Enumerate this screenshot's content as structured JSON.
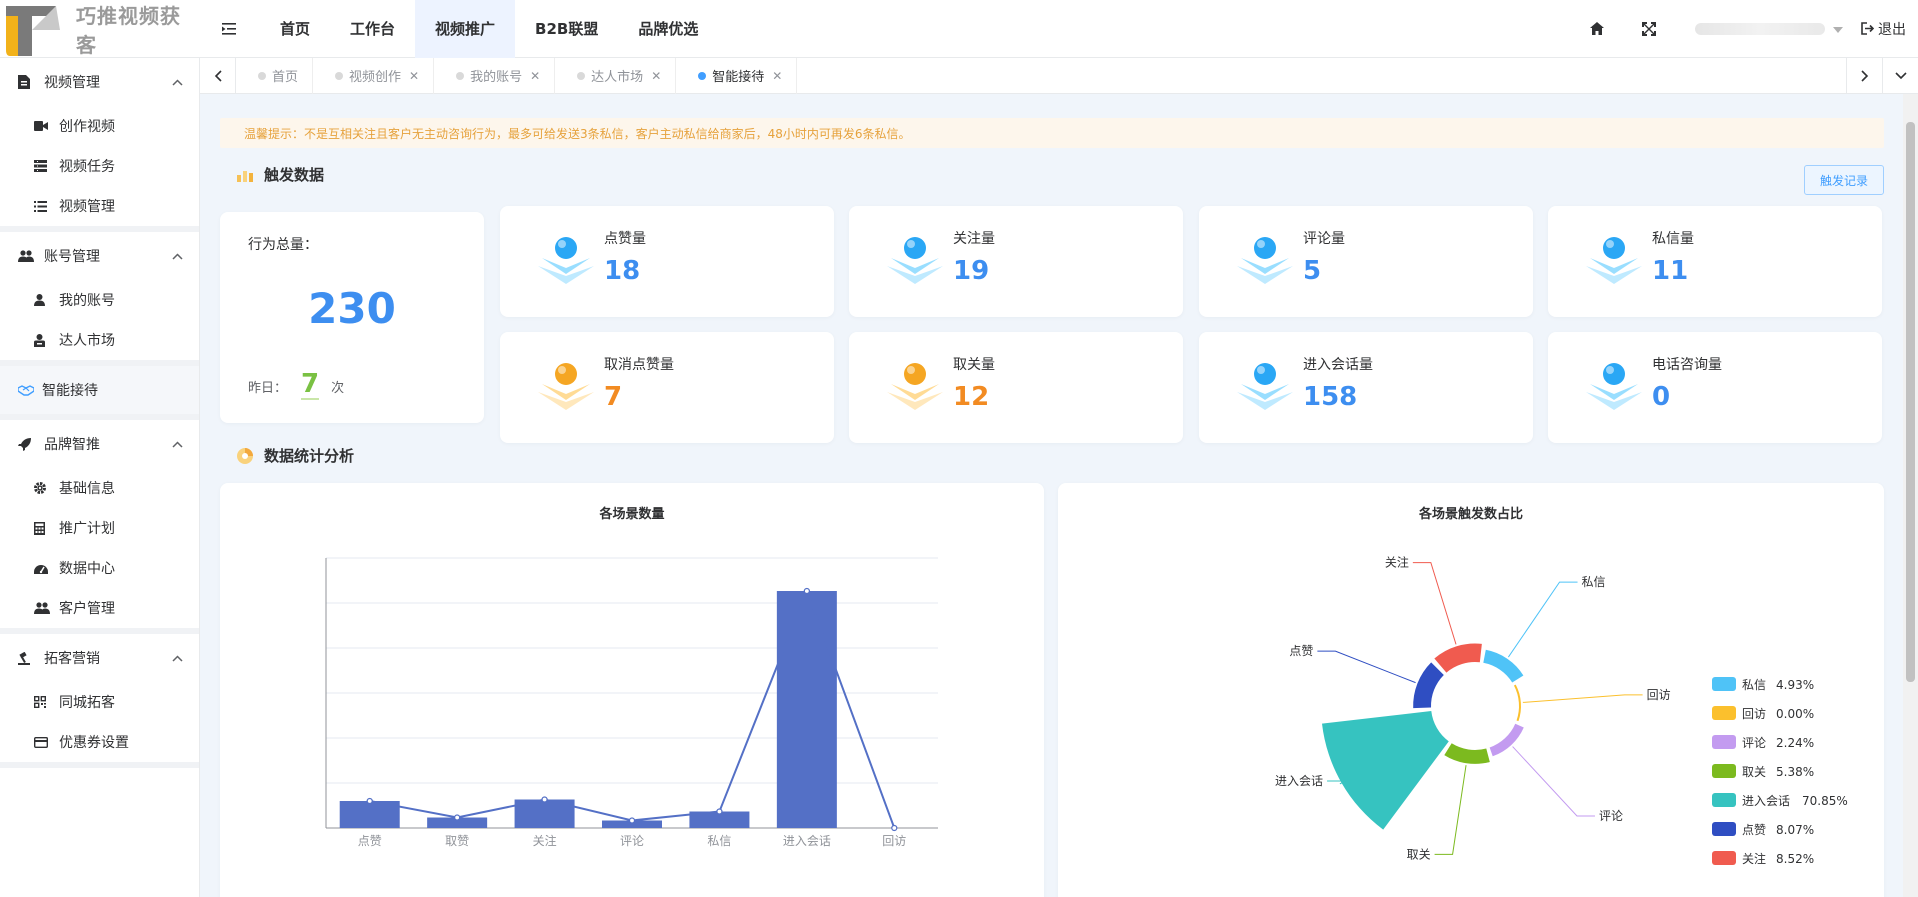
{
  "app": {
    "name": "巧推视频获客"
  },
  "topnav": [
    "首页",
    "工作台",
    "视频推广",
    "B2B联盟",
    "品牌优选"
  ],
  "header": {
    "logout": "退出"
  },
  "sidebar": {
    "groups": [
      {
        "label": "视频管理",
        "icon": "document-icon",
        "items": [
          {
            "label": "创作视频",
            "icon": "video-icon"
          },
          {
            "label": "视频任务",
            "icon": "task-list-icon"
          },
          {
            "label": "视频管理",
            "icon": "list-icon"
          }
        ]
      },
      {
        "label": "账号管理",
        "icon": "users-icon",
        "items": [
          {
            "label": "我的账号",
            "icon": "user-icon"
          },
          {
            "label": "达人市场",
            "icon": "badge-icon"
          }
        ]
      },
      {
        "label": "品牌智推",
        "icon": "rocket-icon",
        "items": [
          {
            "label": "基础信息",
            "icon": "gear-icon"
          },
          {
            "label": "推广计划",
            "icon": "calculator-icon"
          },
          {
            "label": "数据中心",
            "icon": "dashboard-icon"
          },
          {
            "label": "客户管理",
            "icon": "users-icon"
          }
        ]
      },
      {
        "label": "拓客营销",
        "icon": "gavel-icon",
        "items": [
          {
            "label": "同城拓客",
            "icon": "qrcode-icon"
          },
          {
            "label": "优惠券设置",
            "icon": "card-icon"
          }
        ]
      }
    ],
    "single": {
      "label": "智能接待",
      "icon": "handshake-icon"
    }
  },
  "tabs": [
    {
      "label": "首页",
      "closable": false,
      "active": false
    },
    {
      "label": "视频创作",
      "closable": true,
      "active": false
    },
    {
      "label": "我的账号",
      "closable": true,
      "active": false
    },
    {
      "label": "达人市场",
      "closable": true,
      "active": false
    },
    {
      "label": "智能接待",
      "closable": true,
      "active": true
    }
  ],
  "notice": "温馨提示：不是互相关注且客户无主动咨询行为，最多可给发送3条私信，客户主动私信给商家后，48小时内可再发6条私信。",
  "trigger": {
    "title": "触发数据",
    "record_button": "触发记录",
    "total_label": "行为总量：",
    "total_value": "230",
    "yesterday_label": "昨日：",
    "yesterday_value": "7",
    "yesterday_unit": "次",
    "stats": [
      {
        "label": "点赞量",
        "value": "18",
        "color": "blue",
        "icon": "thumbs-up-icon"
      },
      {
        "label": "关注量",
        "value": "19",
        "color": "blue",
        "icon": "heart-icon"
      },
      {
        "label": "评论量",
        "value": "5",
        "color": "blue",
        "icon": "comment-icon"
      },
      {
        "label": "私信量",
        "value": "11",
        "color": "blue",
        "icon": "message-icon"
      },
      {
        "label": "取消点赞量",
        "value": "7",
        "color": "orange",
        "icon": "thumbs-up-icon"
      },
      {
        "label": "取关量",
        "value": "12",
        "color": "orange",
        "icon": "heart-icon"
      },
      {
        "label": "进入会话量",
        "value": "158",
        "color": "blue",
        "icon": "chat-bubble-icon"
      },
      {
        "label": "电话咨询量",
        "value": "0",
        "color": "blue",
        "icon": "phone-icon"
      }
    ]
  },
  "analysis": {
    "title": "数据统计分析"
  },
  "chart_data": [
    {
      "type": "bar",
      "title": "各场景数量",
      "categories": [
        "点赞",
        "取赞",
        "关注",
        "评论",
        "私信",
        "进入会话",
        "回访"
      ],
      "values": [
        18,
        7,
        19,
        5,
        11,
        158,
        0
      ],
      "ylim": [
        0,
        180
      ],
      "line_overlay": true,
      "color": "#5470c6",
      "grid": true
    },
    {
      "type": "pie",
      "title": "各场景触发数占比",
      "rose": true,
      "slices": [
        {
          "name": "私信",
          "percent": "4.93%",
          "value": 11,
          "color": "#4fc3f7"
        },
        {
          "name": "回访",
          "percent": "0.00%",
          "value": 0,
          "color": "#fbc02d"
        },
        {
          "name": "评论",
          "percent": "2.24%",
          "value": 5,
          "color": "#c39bf0"
        },
        {
          "name": "取关",
          "percent": "5.38%",
          "value": 12,
          "color": "#7cba1f"
        },
        {
          "name": "进入会话",
          "percent": "70.85%",
          "value": 158,
          "color": "#36c3c0"
        },
        {
          "name": "点赞",
          "percent": "8.07%",
          "value": 18,
          "color": "#2f4ec2"
        },
        {
          "name": "关注",
          "percent": "8.52%",
          "value": 19,
          "color": "#f05b4f"
        }
      ],
      "legend_position": "right"
    }
  ]
}
